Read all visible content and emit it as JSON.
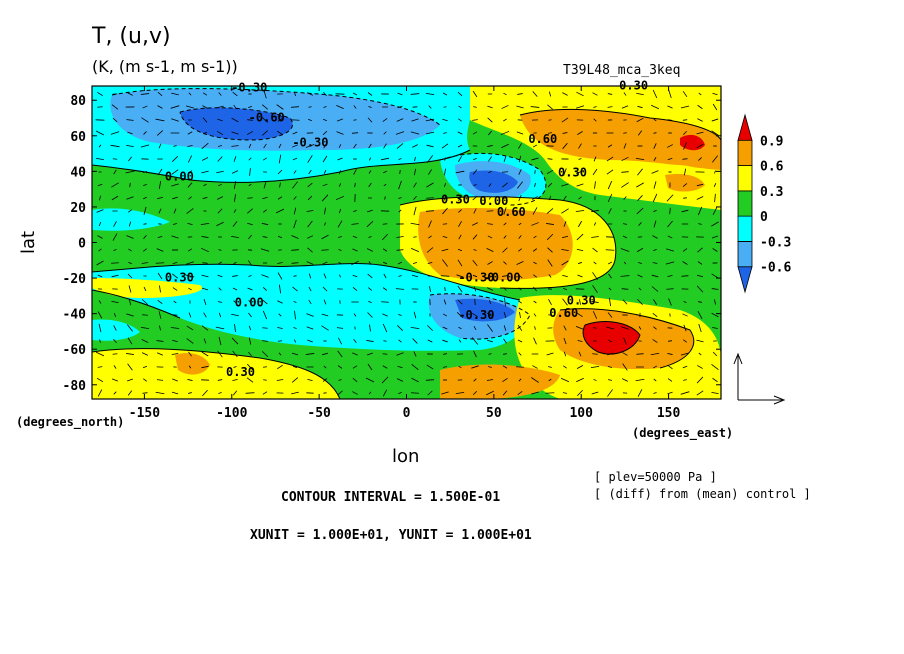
{
  "header": {
    "title": "T, (u,v)",
    "units": "(K, (m s-1, m s-1))",
    "run_id": "T39L48_mca_3keq"
  },
  "footer": {
    "contour_interval": "CONTOUR INTERVAL = 1.500E-01",
    "unit_scale": "XUNIT = 1.000E+01, YUNIT = 1.000E+01",
    "level_note": "[ plev=50000 Pa ]",
    "diff_note": "[ (diff) from (mean) control ]"
  },
  "chart_data": {
    "type": "heatmap",
    "title": "T, (u,v)",
    "subtitle": "(K, (m s-1, m s-1))",
    "xlabel": "lon",
    "ylabel": "lat",
    "x_units": "(degrees_east)",
    "y_units": "(degrees_north)",
    "xlim": [
      -180,
      180
    ],
    "ylim": [
      -88,
      88
    ],
    "x_ticks": [
      -150,
      -100,
      -50,
      0,
      50,
      100,
      150
    ],
    "x_tick_labels": [
      "-150",
      "-100",
      "-50",
      "0",
      "50",
      "100",
      "150"
    ],
    "y_ticks": [
      -80,
      -60,
      -40,
      -20,
      0,
      20,
      40,
      60,
      80
    ],
    "y_tick_labels": [
      "-80",
      "-60",
      "-40",
      "-20",
      "0",
      "20",
      "40",
      "60",
      "80"
    ],
    "colorbar": {
      "levels": [
        -0.6,
        -0.3,
        0,
        0.3,
        0.6,
        0.9
      ],
      "labels": [
        "-0.6",
        "-0.3",
        "0",
        "0.3",
        "0.6",
        "0.9"
      ],
      "colors": [
        "#1e64e6",
        "#4aaef5",
        "#00ffff",
        "#22cc22",
        "#ffff00",
        "#f5a000",
        "#e80000"
      ]
    },
    "contour_labels": [
      {
        "text": "-0.30",
        "lon": -90,
        "lat": 85
      },
      {
        "text": "-0.60",
        "lon": -80,
        "lat": 68
      },
      {
        "text": "-0.30",
        "lon": -55,
        "lat": 54
      },
      {
        "text": "0.00",
        "lon": -130,
        "lat": 35
      },
      {
        "text": "0.60",
        "lon": 78,
        "lat": 56
      },
      {
        "text": "0.30",
        "lon": 130,
        "lat": 86
      },
      {
        "text": "0.30",
        "lon": 95,
        "lat": 37
      },
      {
        "text": "0.30",
        "lon": 28,
        "lat": 22
      },
      {
        "text": "0.00",
        "lon": 50,
        "lat": 21
      },
      {
        "text": "0.60",
        "lon": 60,
        "lat": 15
      },
      {
        "text": "0.30",
        "lon": -130,
        "lat": -22
      },
      {
        "text": "0.00",
        "lon": -90,
        "lat": -36
      },
      {
        "text": "-0.30",
        "lon": 40,
        "lat": -22
      },
      {
        "text": "-0.00",
        "lon": 55,
        "lat": -22
      },
      {
        "text": "-0.30",
        "lon": 40,
        "lat": -43
      },
      {
        "text": "0.30",
        "lon": 100,
        "lat": -35
      },
      {
        "text": "0.60",
        "lon": 90,
        "lat": -42
      },
      {
        "text": "0.30",
        "lon": -95,
        "lat": -75
      }
    ]
  }
}
